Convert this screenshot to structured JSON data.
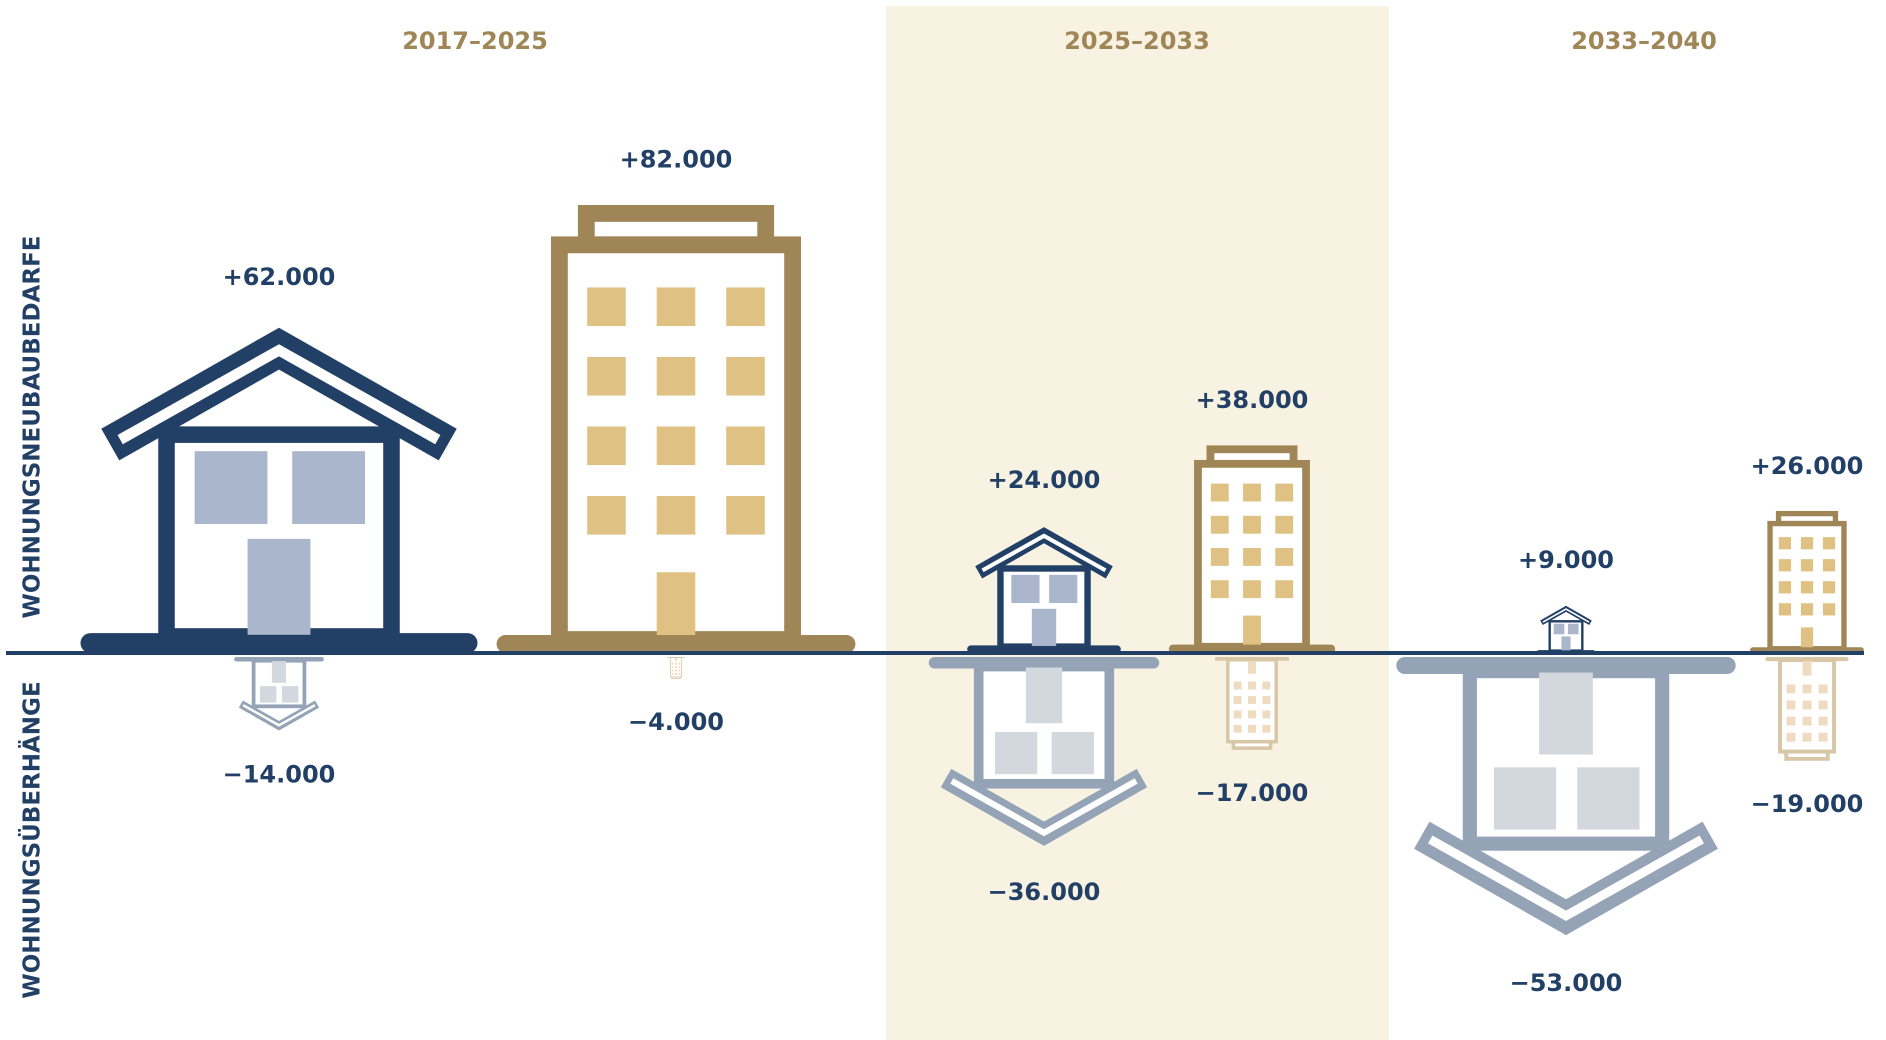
{
  "chart_data": {
    "type": "pictogram",
    "y_label_top": "WOHNUNGSNEUBAUBEDARFE",
    "y_label_bottom": "WOHNUNGSÜBERHÄNGE",
    "periods": [
      "2017–2025",
      "2025–2033",
      "2033–2040"
    ],
    "period_color": "#a08556",
    "highlight_index": 1,
    "highlight_color": "#f8f2e2",
    "axis_color": "#223f66",
    "label_color": "#223f66",
    "series": [
      {
        "icon": "house",
        "color": "#223f66",
        "window_color": "#a9b6cb",
        "values": [
          62000,
          24000,
          9000
        ],
        "value_labels": [
          "+62.000",
          "+24.000",
          "+9.000"
        ]
      },
      {
        "icon": "apartment",
        "color": "#a08556",
        "window_color": "#dfc283",
        "values": [
          82000,
          38000,
          26000
        ],
        "value_labels": [
          "+82.000",
          "+38.000",
          "+26.000"
        ]
      },
      {
        "icon": "house",
        "color": "#94a3b5",
        "window_color": "#d3d8df",
        "values": [
          -14000,
          -36000,
          -53000
        ],
        "value_labels": [
          "−14.000",
          "−36.000",
          "−53.000"
        ]
      },
      {
        "icon": "apartment",
        "color": "#d8c7a6",
        "window_color": "#efdcc0",
        "values": [
          -4000,
          -17000,
          -19000
        ],
        "value_labels": [
          "−4.000",
          "−17.000",
          "−19.000"
        ]
      }
    ]
  }
}
